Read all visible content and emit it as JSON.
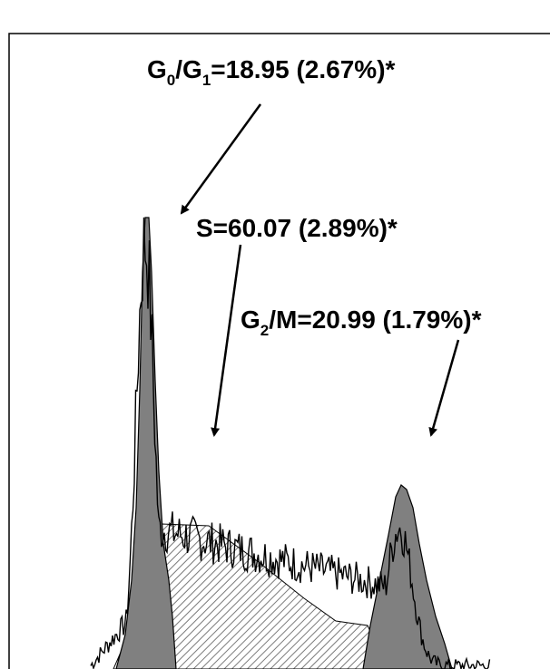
{
  "chart_data": {
    "type": "area",
    "title": "",
    "xlabel": "",
    "ylabel": "",
    "grid": false,
    "legend": "none",
    "annotations": [
      {
        "id": "g0g1",
        "base": "G",
        "sub": "0",
        "mid": "/G",
        "sub2": "1",
        "rest": "=18.95 (2.67%)*"
      },
      {
        "id": "s",
        "text": "S=60.07 (2.89%)*"
      },
      {
        "id": "g2m",
        "base": "G",
        "sub": "2",
        "rest": "/M=20.99 (1.79%)*"
      }
    ],
    "series": [
      {
        "role": "G0/G1 fitted peak",
        "value": 18.95,
        "cv_percent": 2.67
      },
      {
        "role": "S fitted region",
        "value": 60.07,
        "cv_percent": 2.89
      },
      {
        "role": "G2/M fitted peak",
        "value": 20.99,
        "cv_percent": 1.79
      }
    ],
    "colors": {
      "peaks": "#808080",
      "s_phase_hatch": "#808080",
      "histogram": "#000000",
      "frame": "#000000"
    }
  }
}
